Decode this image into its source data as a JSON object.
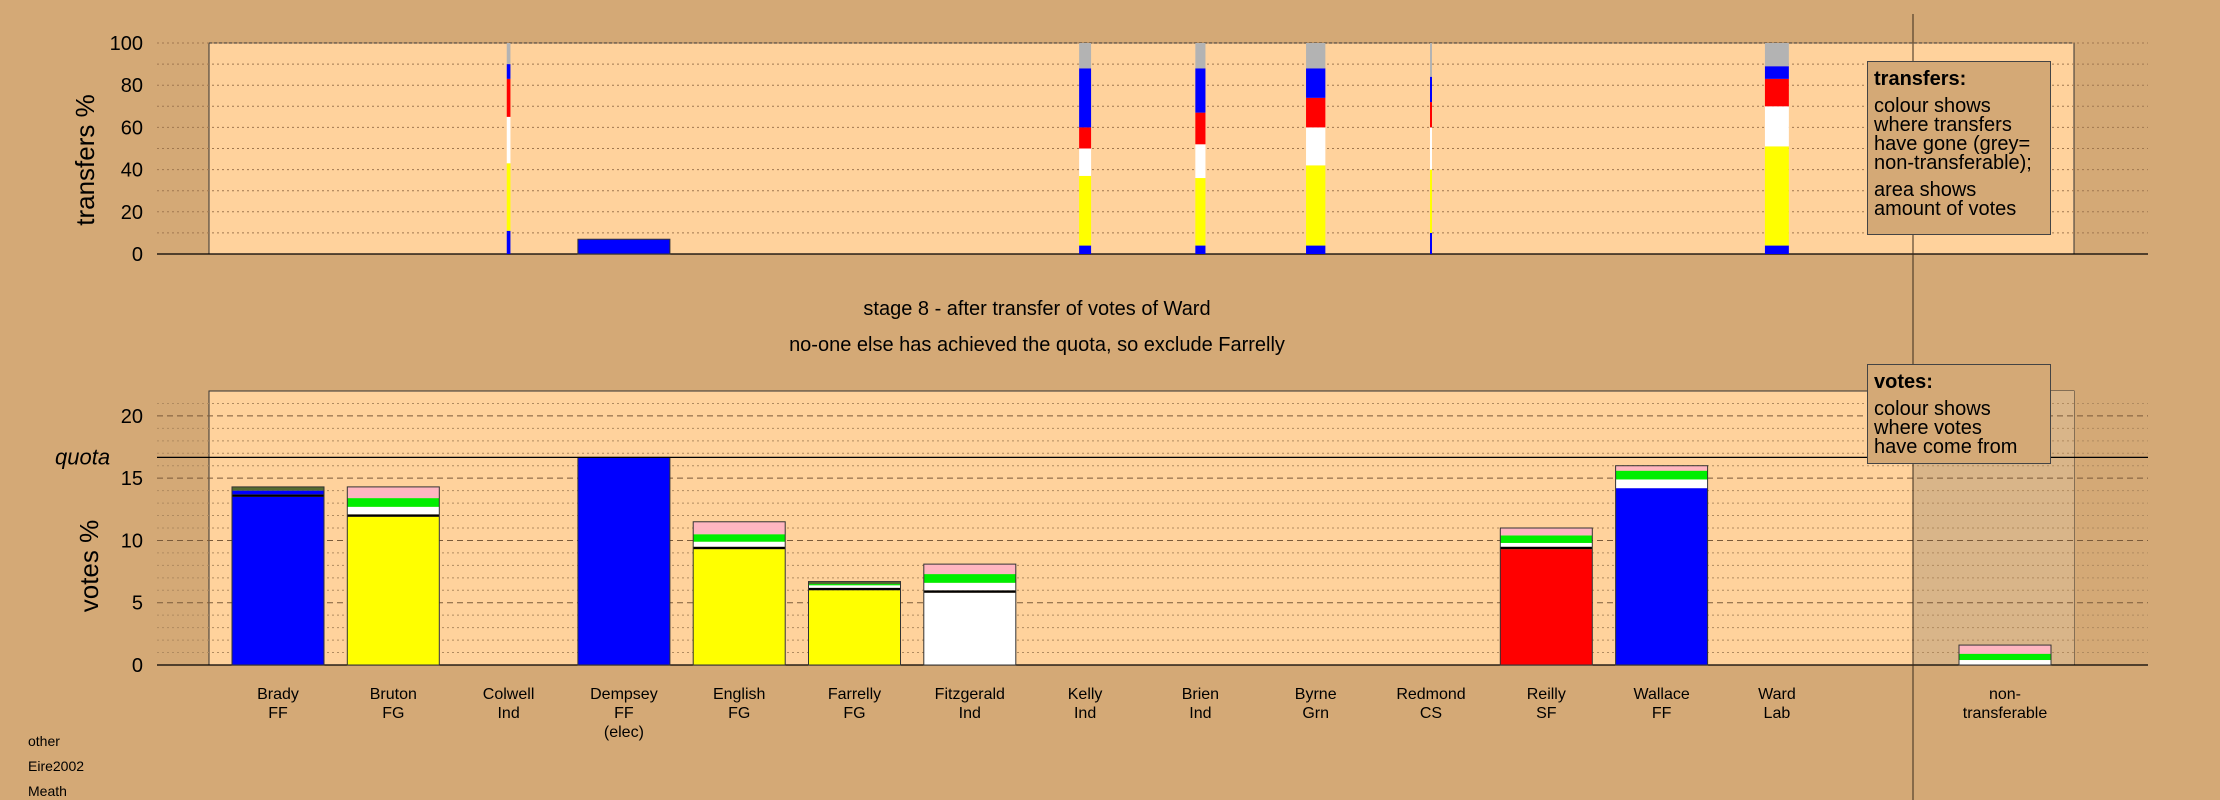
{
  "chart_data": [
    {
      "type": "bar",
      "panel": "transfers",
      "ylabel": "transfers %",
      "ylim": [
        0,
        100
      ],
      "yticks": [
        0,
        20,
        40,
        60,
        80,
        100
      ],
      "categories": [
        "Brady FF",
        "Bruton FG",
        "Colwell Ind",
        "Dempsey FF (elec)",
        "English FG",
        "Farrelly FG",
        "Fitzgerald Ind",
        "Kelly Ind",
        "Brien Ind",
        "Byrne Grn",
        "Redmond CS",
        "Reilly SF",
        "Wallace FF",
        "Ward Lab"
      ],
      "bars": [
        {
          "category": "Colwell Ind",
          "width": 0.04,
          "segments": [
            {
              "color": "#0000ff",
              "from": 0,
              "to": 11
            },
            {
              "color": "#ffff00",
              "from": 11,
              "to": 43
            },
            {
              "color": "#ffffff",
              "from": 43,
              "to": 65
            },
            {
              "color": "#ff0000",
              "from": 65,
              "to": 83
            },
            {
              "color": "#0000ff",
              "from": 83,
              "to": 90
            },
            {
              "color": "#b3b3b3",
              "from": 90,
              "to": 100
            }
          ]
        },
        {
          "category": "Dempsey FF (elec)",
          "width": 1.0,
          "segments": [
            {
              "color": "#0000ff",
              "from": 0,
              "to": 7
            }
          ]
        },
        {
          "category": "Kelly Ind",
          "width": 0.13,
          "segments": [
            {
              "color": "#0000ff",
              "from": 0,
              "to": 4
            },
            {
              "color": "#ffff00",
              "from": 4,
              "to": 37
            },
            {
              "color": "#ffffff",
              "from": 37,
              "to": 50
            },
            {
              "color": "#ff0000",
              "from": 50,
              "to": 60
            },
            {
              "color": "#0000ff",
              "from": 60,
              "to": 88
            },
            {
              "color": "#b3b3b3",
              "from": 88,
              "to": 100
            }
          ]
        },
        {
          "category": "Brien Ind",
          "width": 0.11,
          "segments": [
            {
              "color": "#0000ff",
              "from": 0,
              "to": 4
            },
            {
              "color": "#ffff00",
              "from": 4,
              "to": 36
            },
            {
              "color": "#ffffff",
              "from": 36,
              "to": 52
            },
            {
              "color": "#ff0000",
              "from": 52,
              "to": 67
            },
            {
              "color": "#0000ff",
              "from": 67,
              "to": 88
            },
            {
              "color": "#b3b3b3",
              "from": 88,
              "to": 100
            }
          ]
        },
        {
          "category": "Byrne Grn",
          "width": 0.21,
          "segments": [
            {
              "color": "#0000ff",
              "from": 0,
              "to": 4
            },
            {
              "color": "#ffff00",
              "from": 4,
              "to": 42
            },
            {
              "color": "#ffffff",
              "from": 42,
              "to": 60
            },
            {
              "color": "#ff0000",
              "from": 60,
              "to": 74
            },
            {
              "color": "#0000ff",
              "from": 74,
              "to": 88
            },
            {
              "color": "#b3b3b3",
              "from": 88,
              "to": 100
            }
          ]
        },
        {
          "category": "Redmond CS",
          "width": 0.02,
          "segments": [
            {
              "color": "#0000ff",
              "from": 0,
              "to": 10
            },
            {
              "color": "#ffff00",
              "from": 10,
              "to": 40
            },
            {
              "color": "#ffffff",
              "from": 40,
              "to": 60
            },
            {
              "color": "#ff0000",
              "from": 60,
              "to": 72
            },
            {
              "color": "#0000ff",
              "from": 72,
              "to": 84
            },
            {
              "color": "#b3b3b3",
              "from": 84,
              "to": 100
            }
          ]
        },
        {
          "category": "Ward Lab",
          "width": 0.26,
          "segments": [
            {
              "color": "#0000ff",
              "from": 0,
              "to": 4
            },
            {
              "color": "#ffff00",
              "from": 4,
              "to": 51
            },
            {
              "color": "#ffffff",
              "from": 51,
              "to": 70
            },
            {
              "color": "#ff0000",
              "from": 70,
              "to": 83
            },
            {
              "color": "#0000ff",
              "from": 83,
              "to": 89
            },
            {
              "color": "#b3b3b3",
              "from": 89,
              "to": 100
            }
          ]
        }
      ],
      "legend": {
        "title": "transfers:",
        "body": "colour shows\nwhere transfers\nhave gone (grey=\nnon-transferable);",
        "body2": "area shows\namount of votes"
      }
    },
    {
      "type": "bar",
      "panel": "votes",
      "ylabel": "votes %",
      "ylim": [
        0,
        22
      ],
      "yticks": [
        0,
        5,
        10,
        15,
        20
      ],
      "quota": 16.67,
      "quota_label": "quota",
      "categories": [
        "Brady FF",
        "Bruton FG",
        "Colwell Ind",
        "Dempsey FF (elec)",
        "English FG",
        "Farrelly FG",
        "Fitzgerald Ind",
        "Kelly Ind",
        "Brien Ind",
        "Byrne Grn",
        "Redmond CS",
        "Reilly SF",
        "Wallace FF",
        "Ward Lab",
        "non-transferable"
      ],
      "bars": [
        {
          "category": "Brady FF",
          "segments": [
            {
              "color": "#0000ff",
              "value": 13.5
            },
            {
              "color": "#000000",
              "value": 0.2
            },
            {
              "color": "#0000ff",
              "value": 0.3
            },
            {
              "color": "#556b2f",
              "value": 0.3
            }
          ]
        },
        {
          "category": "Bruton FG",
          "segments": [
            {
              "color": "#ffff00",
              "value": 11.9
            },
            {
              "color": "#000000",
              "value": 0.2
            },
            {
              "color": "#ffffff",
              "value": 0.6
            },
            {
              "color": "#00ee00",
              "value": 0.7
            },
            {
              "color": "#ffb6c1",
              "value": 0.9
            }
          ]
        },
        {
          "category": "Dempsey FF (elec)",
          "segments": [
            {
              "color": "#0000ff",
              "value": 16.67
            }
          ]
        },
        {
          "category": "English FG",
          "segments": [
            {
              "color": "#ffff00",
              "value": 9.3
            },
            {
              "color": "#000000",
              "value": 0.2
            },
            {
              "color": "#ffffff",
              "value": 0.4
            },
            {
              "color": "#00ee00",
              "value": 0.6
            },
            {
              "color": "#ffb6c1",
              "value": 1.0
            }
          ]
        },
        {
          "category": "Farrelly FG",
          "segments": [
            {
              "color": "#ffff00",
              "value": 6.0
            },
            {
              "color": "#000000",
              "value": 0.2
            },
            {
              "color": "#ffffff",
              "value": 0.2
            },
            {
              "color": "#00ee00",
              "value": 0.1
            },
            {
              "color": "#556b2f",
              "value": 0.2
            }
          ]
        },
        {
          "category": "Fitzgerald Ind",
          "segments": [
            {
              "color": "#ffffff",
              "value": 5.8
            },
            {
              "color": "#000000",
              "value": 0.2
            },
            {
              "color": "#ffffff",
              "value": 0.6
            },
            {
              "color": "#00ee00",
              "value": 0.7
            },
            {
              "color": "#ffb6c1",
              "value": 0.8
            }
          ]
        },
        {
          "category": "Reilly SF",
          "segments": [
            {
              "color": "#ff0000",
              "value": 9.3
            },
            {
              "color": "#000000",
              "value": 0.2
            },
            {
              "color": "#ffffff",
              "value": 0.3
            },
            {
              "color": "#00ee00",
              "value": 0.6
            },
            {
              "color": "#ffb6c1",
              "value": 0.6
            }
          ]
        },
        {
          "category": "Wallace FF",
          "segments": [
            {
              "color": "#0000ff",
              "value": 14.2
            },
            {
              "color": "#ffffff",
              "value": 0.7
            },
            {
              "color": "#00ee00",
              "value": 0.7
            },
            {
              "color": "#ffb6c1",
              "value": 0.4
            }
          ]
        },
        {
          "category": "non-transferable",
          "segments": [
            {
              "color": "#ffffff",
              "value": 0.4
            },
            {
              "color": "#00ee00",
              "value": 0.5
            },
            {
              "color": "#ffb6c1",
              "value": 0.7
            }
          ]
        }
      ],
      "legend": {
        "title": "votes:",
        "body": "colour shows\nwhere votes\nhave come from"
      }
    }
  ],
  "stage_text": "stage 8 - after transfer of votes of Ward",
  "note_text": "no-one else has achieved the quota, so exclude Farrelly",
  "footer": [
    "other",
    "Eire2002",
    "Meath"
  ],
  "colors": {
    "background": "#d4a976",
    "plot": "#ffd29c",
    "non_transferable_panel": "#d9b589"
  }
}
